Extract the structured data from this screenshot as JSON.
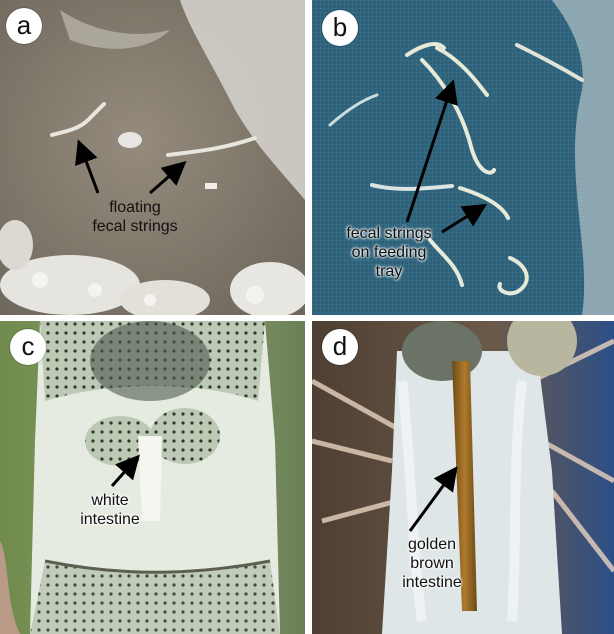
{
  "panels": {
    "a": {
      "label": "a",
      "caption": [
        "floating",
        "fecal strings"
      ]
    },
    "b": {
      "label": "b",
      "caption": [
        "fecal strings",
        "on feeding",
        "tray"
      ]
    },
    "c": {
      "label": "c",
      "caption": [
        "white",
        "intestine"
      ]
    },
    "d": {
      "label": "d",
      "caption": [
        "golden",
        "brown",
        "intestine"
      ]
    }
  },
  "colors": {
    "panel_a_water": "#8c857a",
    "panel_b_tray": "#2d5f78",
    "panel_c_bg": "#6f8b4e",
    "panel_d_bg": "#5b4a3a",
    "strings_white": "#e8e8dc",
    "intestine_brown": "#9a6a22",
    "arrow": "#000000"
  }
}
